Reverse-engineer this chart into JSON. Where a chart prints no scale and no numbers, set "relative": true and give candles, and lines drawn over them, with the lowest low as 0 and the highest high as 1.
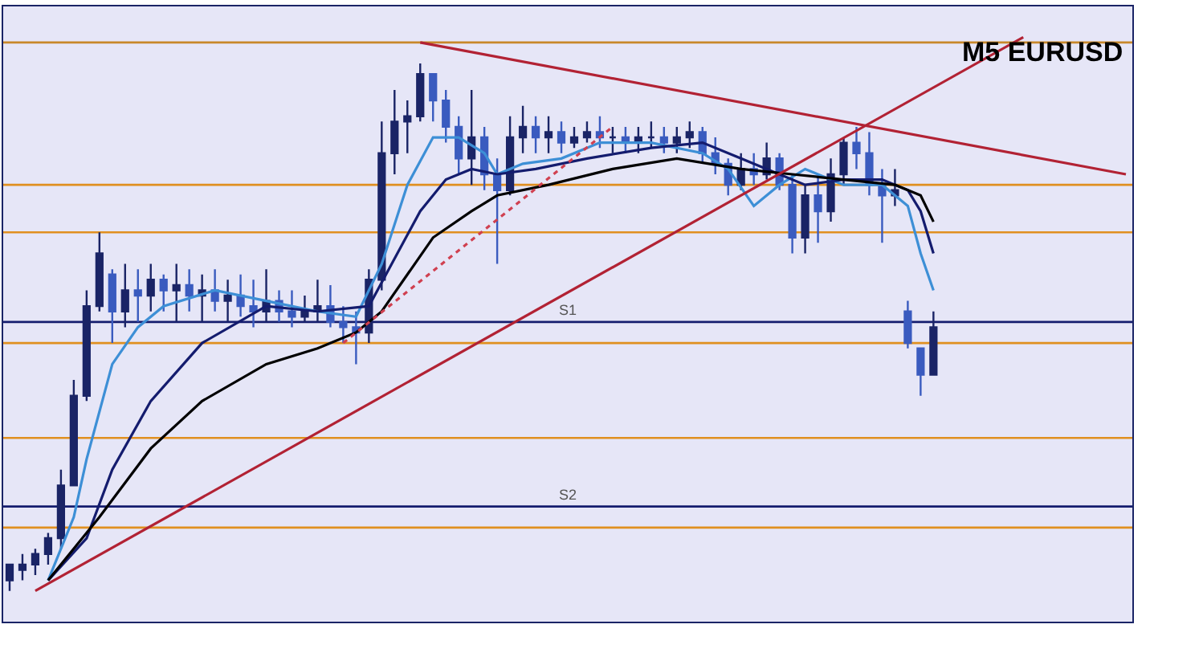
{
  "chart_data": {
    "type": "candlestick",
    "title": "M5 EURUSD",
    "relative": true,
    "categories": [
      null,
      null,
      null,
      null,
      null,
      null,
      null,
      null,
      null,
      null,
      null,
      null,
      null,
      null,
      null,
      null,
      null,
      null,
      null,
      null,
      null,
      null,
      null,
      null,
      null,
      null,
      null,
      null,
      null,
      null,
      null,
      null,
      null,
      null,
      null,
      null,
      null,
      null,
      null,
      null,
      null,
      null,
      null,
      null,
      null,
      null,
      null,
      null,
      null,
      null,
      null,
      null,
      null,
      null,
      null,
      null,
      null,
      null,
      null,
      null,
      null,
      null,
      null,
      null,
      null,
      null,
      null,
      null,
      null,
      null,
      null,
      null,
      null,
      null,
      null,
      null,
      null,
      null,
      null,
      null,
      null,
      null,
      null,
      null,
      null,
      null,
      null,
      null
    ],
    "ohlc": [
      [
        0.02,
        0.05,
        0,
        0.05
      ],
      [
        0.04,
        0.07,
        0.02,
        0.05
      ],
      [
        0.05,
        0.08,
        0.03,
        0.07
      ],
      [
        0.07,
        0.11,
        0.05,
        0.1
      ],
      [
        0.1,
        0.23,
        0.08,
        0.2
      ],
      [
        0.2,
        0.4,
        0.2,
        0.37
      ],
      [
        0.37,
        0.57,
        0.36,
        0.54
      ],
      [
        0.54,
        0.68,
        0.53,
        0.64
      ],
      [
        0.6,
        0.61,
        0.47,
        0.53
      ],
      [
        0.53,
        0.62,
        0.5,
        0.57
      ],
      [
        0.57,
        0.61,
        0.51,
        0.56
      ],
      [
        0.56,
        0.62,
        0.53,
        0.59
      ],
      [
        0.59,
        0.6,
        0.53,
        0.57
      ],
      [
        0.57,
        0.62,
        0.51,
        0.58
      ],
      [
        0.58,
        0.61,
        0.53,
        0.56
      ],
      [
        0.56,
        0.6,
        0.51,
        0.57
      ],
      [
        0.57,
        0.61,
        0.53,
        0.55
      ],
      [
        0.55,
        0.59,
        0.51,
        0.56
      ],
      [
        0.56,
        0.6,
        0.52,
        0.54
      ],
      [
        0.54,
        0.59,
        0.5,
        0.53
      ],
      [
        0.53,
        0.61,
        0.51,
        0.55
      ],
      [
        0.55,
        0.57,
        0.51,
        0.53
      ],
      [
        0.53,
        0.57,
        0.5,
        0.52
      ],
      [
        0.52,
        0.56,
        0.51,
        0.53
      ],
      [
        0.53,
        0.59,
        0.51,
        0.54
      ],
      [
        0.54,
        0.58,
        0.5,
        0.51
      ],
      [
        0.51,
        0.54,
        0.47,
        0.5
      ],
      [
        0.5,
        0.53,
        0.43,
        0.49
      ],
      [
        0.49,
        0.61,
        0.47,
        0.59
      ],
      [
        0.59,
        0.89,
        0.57,
        0.83
      ],
      [
        0.83,
        0.95,
        0.79,
        0.89
      ],
      [
        0.89,
        0.93,
        0.83,
        0.9
      ],
      [
        0.9,
        1.0,
        0.89,
        0.98
      ],
      [
        0.98,
        0.98,
        0.89,
        0.93
      ],
      [
        0.93,
        0.95,
        0.85,
        0.88
      ],
      [
        0.88,
        0.9,
        0.79,
        0.82
      ],
      [
        0.82,
        0.95,
        0.77,
        0.86
      ],
      [
        0.86,
        0.88,
        0.76,
        0.79
      ],
      [
        0.79,
        0.82,
        0.62,
        0.76
      ],
      [
        0.76,
        0.9,
        0.75,
        0.86
      ],
      [
        0.86,
        0.92,
        0.83,
        0.88
      ],
      [
        0.88,
        0.9,
        0.83,
        0.86
      ],
      [
        0.86,
        0.9,
        0.83,
        0.87
      ],
      [
        0.87,
        0.89,
        0.83,
        0.85
      ],
      [
        0.85,
        0.88,
        0.84,
        0.86
      ],
      [
        0.86,
        0.89,
        0.85,
        0.87
      ],
      [
        0.87,
        0.9,
        0.84,
        0.86
      ],
      [
        0.86,
        0.88,
        0.83,
        0.86
      ],
      [
        0.86,
        0.88,
        0.83,
        0.85
      ],
      [
        0.85,
        0.88,
        0.83,
        0.86
      ],
      [
        0.86,
        0.89,
        0.84,
        0.86
      ],
      [
        0.86,
        0.88,
        0.83,
        0.85
      ],
      [
        0.85,
        0.88,
        0.83,
        0.86
      ],
      [
        0.86,
        0.89,
        0.84,
        0.87
      ],
      [
        0.87,
        0.88,
        0.81,
        0.83
      ],
      [
        0.83,
        0.86,
        0.79,
        0.81
      ],
      [
        0.81,
        0.82,
        0.75,
        0.77
      ],
      [
        0.77,
        0.83,
        0.76,
        0.8
      ],
      [
        0.8,
        0.83,
        0.77,
        0.79
      ],
      [
        0.79,
        0.85,
        0.78,
        0.82
      ],
      [
        0.82,
        0.83,
        0.76,
        0.77
      ],
      [
        0.77,
        0.79,
        0.64,
        0.67
      ],
      [
        0.67,
        0.77,
        0.64,
        0.75
      ],
      [
        0.75,
        0.79,
        0.66,
        0.72
      ],
      [
        0.72,
        0.82,
        0.7,
        0.79
      ],
      [
        0.79,
        0.86,
        0.77,
        0.85
      ],
      [
        0.85,
        0.88,
        0.8,
        0.83
      ],
      [
        0.83,
        0.87,
        0.75,
        0.77
      ],
      [
        0.77,
        0.8,
        0.66,
        0.75
      ],
      [
        0.75,
        0.8,
        0.73,
        0.76
      ],
      [
        0.53,
        0.55,
        0.46,
        0.47
      ],
      [
        0.46,
        0.46,
        0.37,
        0.41
      ],
      [
        0.41,
        0.53,
        0.41,
        0.5
      ],
      null,
      null,
      null,
      null,
      null,
      null,
      null,
      null,
      null,
      null,
      null,
      null,
      null,
      null,
      null
    ],
    "colors": [
      "#1a2466",
      "#1a2466",
      "#1a2466",
      "#1a2466",
      "#1a2466",
      "#1a2466",
      "#1a2466",
      "#1a2466",
      "#3a5bbf",
      "#1a2466",
      "#3a5bbf",
      "#1a2466",
      "#3a5bbf",
      "#1a2466",
      "#3a5bbf",
      "#1a2466",
      "#3a5bbf",
      "#1a2466",
      "#3a5bbf",
      "#3a5bbf",
      "#1a2466",
      "#3a5bbf",
      "#3a5bbf",
      "#1a2466",
      "#1a2466",
      "#3a5bbf",
      "#3a5bbf",
      "#3a5bbf",
      "#1a2466",
      "#1a2466",
      "#1a2466",
      "#1a2466",
      "#1a2466",
      "#3a5bbf",
      "#3a5bbf",
      "#3a5bbf",
      "#1a2466",
      "#3a5bbf",
      "#3a5bbf",
      "#1a2466",
      "#1a2466",
      "#3a5bbf",
      "#1a2466",
      "#3a5bbf",
      "#1a2466",
      "#1a2466",
      "#3a5bbf",
      "#1a2466",
      "#3a5bbf",
      "#1a2466",
      "#1a2466",
      "#3a5bbf",
      "#1a2466",
      "#1a2466",
      "#3a5bbf",
      "#3a5bbf",
      "#3a5bbf",
      "#1a2466",
      "#3a5bbf",
      "#1a2466",
      "#3a5bbf",
      "#3a5bbf",
      "#1a2466",
      "#3a5bbf",
      "#1a2466",
      "#1a2466",
      "#3a5bbf",
      "#3a5bbf",
      "#3a5bbf",
      "#1a2466",
      "#3a5bbf",
      "#3a5bbf",
      "#1a2466",
      null,
      null,
      null,
      null,
      null,
      null,
      null,
      null,
      null,
      null,
      null,
      null,
      null,
      null,
      null
    ],
    "series": [
      {
        "type": "line",
        "color": "#3d8fd6",
        "values": [
          null,
          null,
          null,
          0.02,
          null,
          0.14,
          0.25,
          null,
          0.43,
          null,
          0.5,
          null,
          0.54,
          null,
          null,
          null,
          0.57,
          null,
          null,
          null,
          0.55,
          null,
          null,
          null,
          0.53,
          null,
          null,
          0.52,
          null,
          0.62,
          null,
          0.77,
          null,
          0.86,
          null,
          0.86,
          null,
          0.83,
          0.79,
          null,
          0.81,
          null,
          null,
          0.82,
          null,
          null,
          0.85,
          null,
          null,
          null,
          0.85,
          null,
          null,
          null,
          0.83,
          null,
          0.8,
          null,
          0.73,
          null,
          0.77,
          null,
          0.8,
          null,
          null,
          0.77,
          null,
          null,
          0.77,
          null,
          0.73,
          0.64,
          0.57,
          null,
          null,
          null,
          null,
          null,
          null,
          null,
          null,
          null,
          null,
          null,
          null,
          null,
          null,
          null
        ]
      },
      {
        "type": "line",
        "color": "#141c6e",
        "values": [
          null,
          null,
          null,
          0.02,
          null,
          null,
          0.1,
          null,
          0.23,
          null,
          null,
          0.36,
          null,
          null,
          null,
          0.47,
          null,
          null,
          null,
          null,
          0.54,
          null,
          null,
          null,
          0.53,
          null,
          null,
          null,
          0.54,
          null,
          0.63,
          null,
          0.72,
          null,
          0.78,
          null,
          0.8,
          null,
          0.79,
          null,
          null,
          0.8,
          null,
          null,
          null,
          0.82,
          null,
          null,
          null,
          null,
          0.84,
          null,
          null,
          null,
          0.85,
          null,
          null,
          0.82,
          null,
          0.8,
          null,
          null,
          0.77,
          null,
          null,
          0.78,
          null,
          null,
          0.78,
          null,
          0.76,
          0.72,
          0.64,
          null,
          null,
          null,
          null,
          null,
          null,
          null,
          null,
          null,
          null,
          null,
          null,
          null,
          null,
          null
        ]
      },
      {
        "type": "line",
        "color": "#000000",
        "values": [
          null,
          null,
          null,
          0.02,
          null,
          null,
          null,
          0.14,
          null,
          null,
          null,
          0.27,
          null,
          null,
          null,
          0.36,
          null,
          null,
          null,
          null,
          0.43,
          null,
          null,
          null,
          0.46,
          null,
          null,
          0.49,
          null,
          0.53,
          null,
          0.6,
          null,
          0.67,
          null,
          null,
          0.72,
          null,
          0.75,
          null,
          null,
          null,
          0.77,
          null,
          null,
          null,
          null,
          0.8,
          null,
          null,
          null,
          null,
          0.82,
          null,
          null,
          null,
          null,
          0.8,
          null,
          null,
          null,
          0.79,
          null,
          null,
          null,
          0.78,
          null,
          null,
          null,
          0.77,
          null,
          0.75,
          0.7,
          null,
          null,
          null,
          null,
          null,
          null,
          null,
          null,
          null,
          null,
          null,
          null,
          null,
          null,
          null
        ]
      },
      {
        "type": "line",
        "color": "#b22234",
        "values": [
          null,
          null,
          0,
          null,
          null,
          null,
          null,
          null,
          null,
          null,
          null,
          null,
          null,
          null,
          null,
          null,
          null,
          null,
          null,
          null,
          null,
          null,
          null,
          null,
          null,
          null,
          null,
          null,
          null,
          null,
          null,
          null,
          null,
          null,
          null,
          null,
          null,
          null,
          null,
          null,
          null,
          null,
          null,
          null,
          null,
          null,
          null,
          null,
          null,
          null,
          null,
          null,
          null,
          null,
          null,
          null,
          null,
          null,
          null,
          null,
          null,
          null,
          null,
          null,
          null,
          null,
          null,
          null,
          null,
          null,
          null,
          null,
          null,
          null,
          null,
          null,
          null,
          null,
          null,
          1.05,
          null,
          null,
          null,
          null,
          null,
          null,
          null,
          null
        ]
      },
      {
        "type": "line",
        "color": "#b22234",
        "values": [
          null,
          null,
          null,
          null,
          null,
          null,
          null,
          null,
          null,
          null,
          null,
          null,
          null,
          null,
          null,
          null,
          null,
          null,
          null,
          null,
          null,
          null,
          null,
          null,
          null,
          null,
          null,
          null,
          null,
          null,
          null,
          null,
          1.04,
          null,
          null,
          null,
          null,
          null,
          null,
          null,
          null,
          null,
          null,
          null,
          null,
          null,
          null,
          null,
          null,
          null,
          null,
          null,
          null,
          null,
          null,
          null,
          null,
          null,
          null,
          null,
          null,
          null,
          null,
          null,
          null,
          null,
          null,
          null,
          null,
          null,
          null,
          null,
          null,
          null,
          null,
          null,
          null,
          null,
          null,
          null,
          null,
          null,
          null,
          null,
          null,
          null,
          null,
          0.79
        ]
      },
      {
        "type": "line",
        "color": "#d04050",
        "line_style": "dotted",
        "values": [
          null,
          null,
          null,
          null,
          null,
          null,
          null,
          null,
          null,
          null,
          null,
          null,
          null,
          null,
          null,
          null,
          null,
          null,
          null,
          null,
          null,
          null,
          null,
          null,
          null,
          null,
          0.47,
          null,
          null,
          null,
          null,
          null,
          null,
          null,
          null,
          null,
          null,
          null,
          null,
          null,
          null,
          null,
          null,
          null,
          null,
          null,
          null,
          0.88,
          null,
          null,
          null,
          null,
          null,
          null,
          null,
          null,
          null,
          null,
          null,
          null,
          null,
          null,
          null,
          null,
          null,
          null,
          null,
          null,
          null,
          null,
          null,
          null,
          null,
          null,
          null,
          null,
          null,
          null,
          null,
          null,
          null,
          null,
          null,
          null,
          null,
          null,
          null,
          null
        ]
      }
    ],
    "ref_lines": [
      {
        "axis": "y",
        "value": 1.04,
        "color": "#c8882a"
      },
      {
        "axis": "y",
        "value": 0.77,
        "color": "#e09020"
      },
      {
        "axis": "y",
        "value": 0.68,
        "color": "#e09020"
      },
      {
        "axis": "y",
        "value": 0.51,
        "color": "#141c6e",
        "label": "S1"
      },
      {
        "axis": "y",
        "value": 0.47,
        "color": "#e09020"
      },
      {
        "axis": "y",
        "value": 0.29,
        "color": "#e09020"
      },
      {
        "axis": "y",
        "value": 0.16,
        "color": "#141c6e",
        "label": "S2"
      },
      {
        "axis": "y",
        "value": 0.12,
        "color": "#e09020"
      }
    ],
    "tick_labels": false,
    "grid": false
  }
}
